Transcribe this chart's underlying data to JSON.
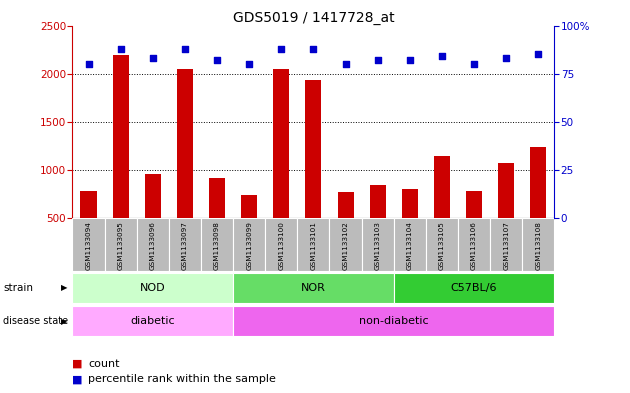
{
  "title": "GDS5019 / 1417728_at",
  "samples": [
    "GSM1133094",
    "GSM1133095",
    "GSM1133096",
    "GSM1133097",
    "GSM1133098",
    "GSM1133099",
    "GSM1133100",
    "GSM1133101",
    "GSM1133102",
    "GSM1133103",
    "GSM1133104",
    "GSM1133105",
    "GSM1133106",
    "GSM1133107",
    "GSM1133108"
  ],
  "counts": [
    780,
    2190,
    960,
    2050,
    920,
    740,
    2050,
    1930,
    770,
    840,
    800,
    1150,
    780,
    1070,
    1240
  ],
  "percentile_ranks": [
    80,
    88,
    83,
    88,
    82,
    80,
    88,
    88,
    80,
    82,
    82,
    84,
    80,
    83,
    85
  ],
  "ylim_left": [
    500,
    2500
  ],
  "ylim_right": [
    0,
    100
  ],
  "yticks_left": [
    500,
    1000,
    1500,
    2000,
    2500
  ],
  "yticks_right": [
    0,
    25,
    50,
    75,
    100
  ],
  "bar_color": "#cc0000",
  "dot_color": "#0000cc",
  "bar_bottom": 500,
  "groups": {
    "strain": [
      {
        "label": "NOD",
        "start": 0,
        "end": 5,
        "color": "#ccffcc"
      },
      {
        "label": "NOR",
        "start": 5,
        "end": 10,
        "color": "#66dd66"
      },
      {
        "label": "C57BL/6",
        "start": 10,
        "end": 15,
        "color": "#33cc33"
      }
    ],
    "disease_state": [
      {
        "label": "diabetic",
        "start": 0,
        "end": 5,
        "color": "#ffaaff"
      },
      {
        "label": "non-diabetic",
        "start": 5,
        "end": 15,
        "color": "#ee66ee"
      }
    ]
  },
  "tick_bg_color": "#bbbbbb",
  "label_fontsize": 8,
  "title_fontsize": 10,
  "grid_lines": [
    1000,
    1500,
    2000
  ],
  "fig_width": 6.3,
  "fig_height": 3.93,
  "dpi": 100
}
